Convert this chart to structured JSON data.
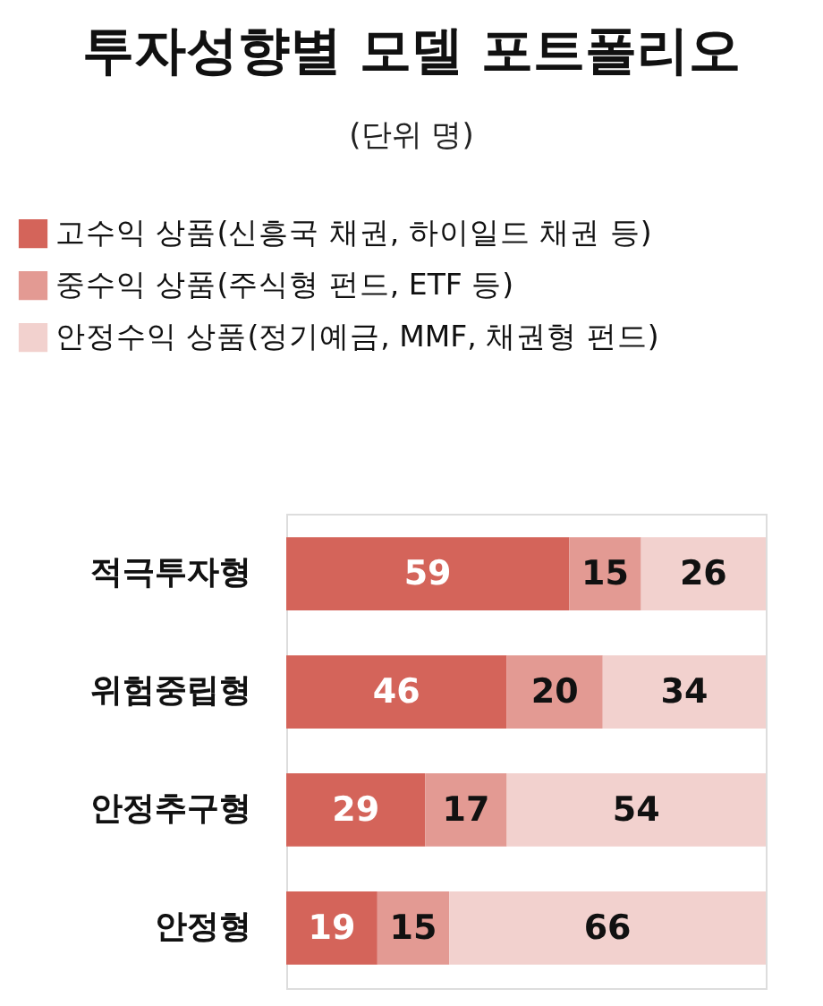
{
  "chart_data": {
    "type": "bar",
    "orientation": "horizontal",
    "stacked": true,
    "data_labels": true,
    "title": "투자성향별 모델 포트폴리오",
    "subtitle": "(단위 명)",
    "categories": [
      "적극투자형",
      "위험중립형",
      "안정추구형",
      "안정형"
    ],
    "series": [
      {
        "name": "고수익 상품(신흥국 채권, 하이일드 채권 등)",
        "color": "#d4645a",
        "values": [
          59,
          46,
          29,
          19
        ]
      },
      {
        "name": "중수익 상품(주식형 펀드, ETF 등)",
        "color": "#e39a93",
        "values": [
          15,
          20,
          17,
          15
        ]
      },
      {
        "name": "안정수익 상품(정기예금, MMF, 채권형 펀드)",
        "color": "#f2d1ce",
        "values": [
          26,
          34,
          54,
          66
        ]
      }
    ],
    "legend": "top left",
    "grid": false
  }
}
